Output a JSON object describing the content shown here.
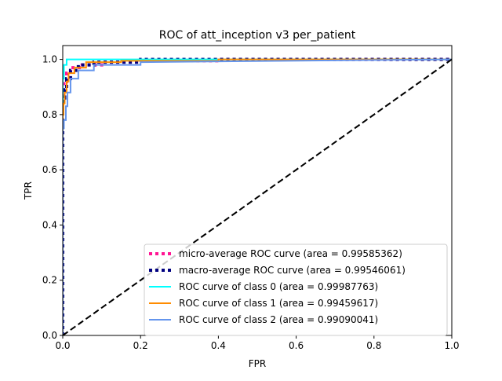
{
  "chart_data": {
    "type": "line",
    "title": "ROC of att_inception v3 per_patient",
    "xlabel": "FPR",
    "ylabel": "TPR",
    "xlim": [
      0.0,
      1.0
    ],
    "ylim": [
      0.0,
      1.05
    ],
    "xticks": [
      "0.0",
      "0.2",
      "0.4",
      "0.6",
      "0.8",
      "1.0"
    ],
    "yticks": [
      "0.0",
      "0.2",
      "0.4",
      "0.6",
      "0.8",
      "1.0"
    ],
    "grid": false,
    "legend_position": "lower-right",
    "series": [
      {
        "name": "micro-average ROC curve (area = 0.99585362)",
        "color": "#ff1493",
        "style": "dotted",
        "x": [
          0.0,
          0.0,
          0.003,
          0.003,
          0.01,
          0.01,
          0.02,
          0.02,
          0.05,
          0.05,
          0.1,
          0.1,
          0.2,
          0.2,
          0.4,
          0.4,
          1.0
        ],
        "y": [
          0.0,
          0.88,
          0.88,
          0.92,
          0.92,
          0.95,
          0.95,
          0.97,
          0.97,
          0.98,
          0.98,
          0.99,
          0.99,
          0.995,
          0.995,
          1.0,
          1.0
        ]
      },
      {
        "name": "macro-average ROC curve (area = 0.99546061)",
        "color": "#000080",
        "style": "dotted",
        "x": [
          0.0,
          0.0,
          0.005,
          0.005,
          0.01,
          0.01,
          0.02,
          0.02,
          0.04,
          0.04,
          0.08,
          0.08,
          0.2,
          0.2,
          1.0
        ],
        "y": [
          0.0,
          0.86,
          0.86,
          0.89,
          0.89,
          0.93,
          0.93,
          0.96,
          0.96,
          0.98,
          0.98,
          0.99,
          0.99,
          1.0,
          1.0
        ]
      },
      {
        "name": "ROC curve of class 0 (area = 0.99987763)",
        "color": "#00ffff",
        "style": "solid",
        "x": [
          0.0,
          0.0,
          0.003,
          0.003,
          0.01,
          0.01,
          1.0
        ],
        "y": [
          0.0,
          0.93,
          0.93,
          0.98,
          0.98,
          1.0,
          1.0
        ]
      },
      {
        "name": "ROC curve of class 1 (area = 0.99459617)",
        "color": "#ff8c00",
        "style": "solid",
        "x": [
          0.0,
          0.0,
          0.002,
          0.002,
          0.005,
          0.005,
          0.01,
          0.01,
          0.015,
          0.015,
          0.03,
          0.03,
          0.06,
          0.06,
          0.15,
          0.15,
          0.4,
          0.4,
          1.0
        ],
        "y": [
          0.0,
          0.8,
          0.8,
          0.84,
          0.84,
          0.88,
          0.88,
          0.92,
          0.92,
          0.95,
          0.95,
          0.97,
          0.97,
          0.99,
          0.99,
          0.995,
          0.995,
          1.0,
          1.0
        ]
      },
      {
        "name": "ROC curve of class 2 (area = 0.99090041)",
        "color": "#6495ed",
        "style": "solid",
        "x": [
          0.0,
          0.0,
          0.003,
          0.003,
          0.008,
          0.008,
          0.012,
          0.012,
          0.02,
          0.02,
          0.04,
          0.04,
          0.08,
          0.08,
          0.2,
          0.2,
          1.0
        ],
        "y": [
          0.0,
          0.75,
          0.75,
          0.78,
          0.78,
          0.83,
          0.83,
          0.88,
          0.88,
          0.93,
          0.93,
          0.96,
          0.96,
          0.98,
          0.98,
          0.99,
          1.0
        ]
      },
      {
        "name": "",
        "color": "#000000",
        "style": "dashed",
        "x": [
          0.0,
          1.0
        ],
        "y": [
          0.0,
          1.0
        ]
      }
    ]
  }
}
